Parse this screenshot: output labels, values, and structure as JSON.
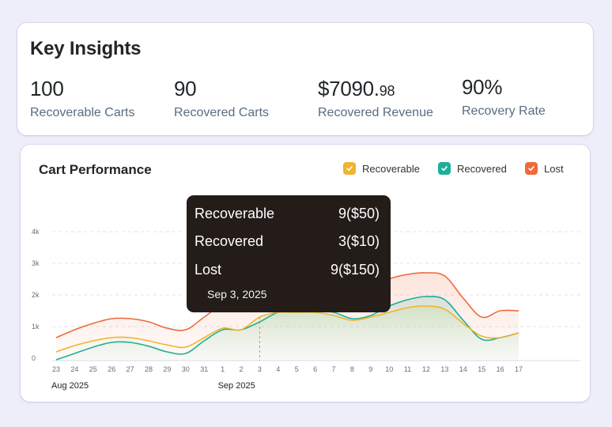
{
  "insights": {
    "title": "Key Insights",
    "metrics": [
      {
        "value": "100",
        "cents": "",
        "label": "Recoverable Carts"
      },
      {
        "value": "90",
        "cents": "",
        "label": "Recovered Carts"
      },
      {
        "value": "$7090.",
        "cents": "98",
        "label": "Recovered Revenue"
      },
      {
        "value": "90%",
        "cents": "",
        "label": "Recovery Rate"
      }
    ]
  },
  "performance": {
    "title": "Cart Performance",
    "legend": [
      {
        "label": "Recoverable",
        "color": "#f0b42c",
        "icon": "check-icon"
      },
      {
        "label": "Recovered",
        "color": "#1fae9a",
        "icon": "check-icon"
      },
      {
        "label": "Lost",
        "color": "#f06a3a",
        "icon": "check-icon"
      }
    ],
    "tooltip": {
      "rows": [
        {
          "label": "Recoverable",
          "value": "9($50)"
        },
        {
          "label": "Recovered",
          "value": "3($10)"
        },
        {
          "label": "Lost",
          "value": "9($150)"
        }
      ],
      "date": "Sep 3, 2025"
    }
  },
  "chart_data": {
    "type": "area",
    "title": "Cart Performance",
    "x": [
      "23",
      "24",
      "25",
      "26",
      "27",
      "28",
      "29",
      "30",
      "31",
      "1",
      "2",
      "3",
      "4",
      "5",
      "6",
      "7",
      "8",
      "9",
      "10",
      "11",
      "12",
      "13",
      "14",
      "15",
      "16",
      "17"
    ],
    "x_months": [
      {
        "label": "Aug 2025",
        "at": "23"
      },
      {
        "label": "Sep 2025",
        "at": "1"
      }
    ],
    "y_ticks": [
      "0",
      "1k",
      "2k",
      "3k",
      "4k"
    ],
    "ylim": [
      0,
      4000
    ],
    "grid": true,
    "legend_position": "top-right",
    "series": [
      {
        "name": "Recoverable",
        "color": "#f0b42c",
        "values": [
          200,
          400,
          550,
          650,
          650,
          550,
          420,
          350,
          650,
          950,
          900,
          1300,
          1450,
          1450,
          1450,
          1350,
          1200,
          1300,
          1450,
          1600,
          1650,
          1550,
          1100,
          700,
          650,
          800
        ]
      },
      {
        "name": "Recovered",
        "color": "#1fae9a",
        "values": [
          -50,
          150,
          350,
          500,
          500,
          380,
          200,
          150,
          550,
          900,
          900,
          1150,
          1450,
          1500,
          1500,
          1450,
          1250,
          1350,
          1650,
          1850,
          1950,
          1850,
          1200,
          600,
          650,
          800
        ]
      },
      {
        "name": "Lost",
        "color": "#f06a3a",
        "values": [
          650,
          900,
          1100,
          1250,
          1250,
          1150,
          950,
          900,
          1300,
          1700,
          1750,
          1950,
          2050,
          2100,
          2100,
          2050,
          1900,
          2150,
          2500,
          2650,
          2700,
          2600,
          1900,
          1300,
          1500,
          1500
        ]
      }
    ]
  }
}
